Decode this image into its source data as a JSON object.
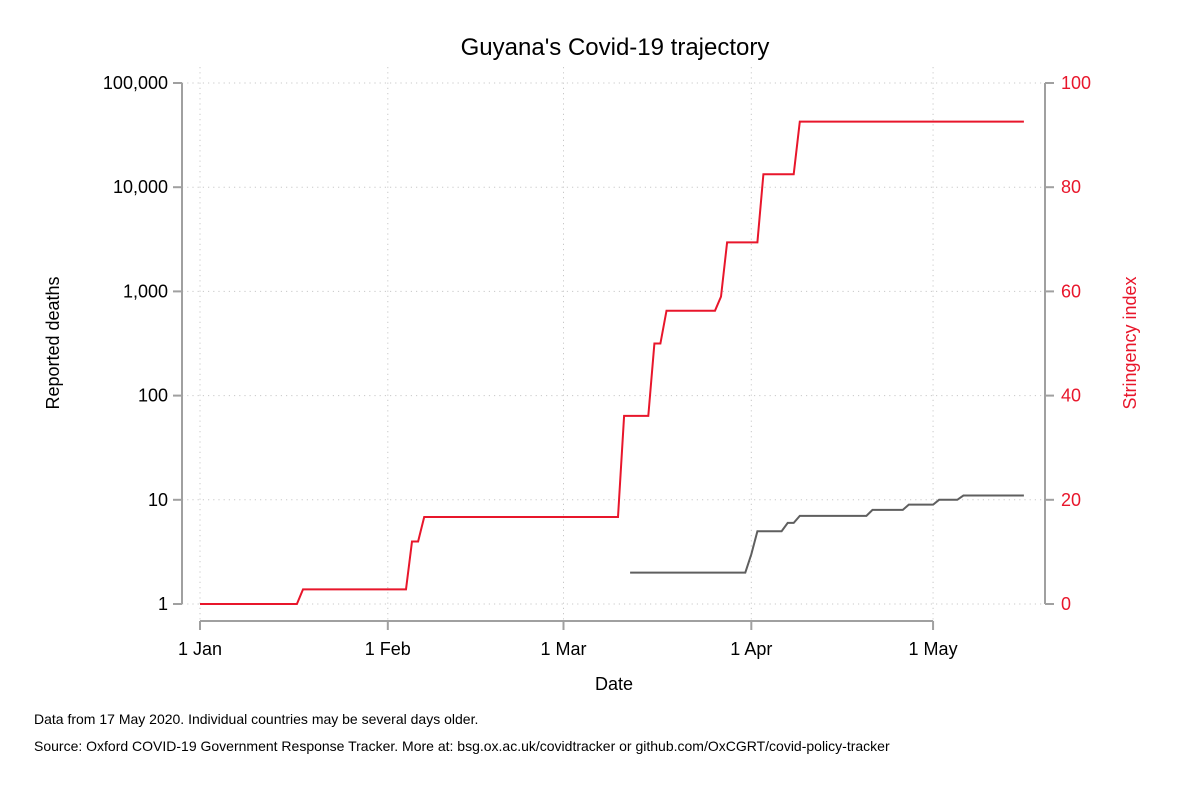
{
  "chart_data": {
    "type": "line",
    "title": "Guyana's Covid-19 trajectory",
    "xlabel": "Date",
    "ylabel_left": "Reported deaths",
    "ylabel_right": "Stringency index",
    "x_tick_labels": [
      "1 Jan",
      "1 Feb",
      "1 Mar",
      "1 Apr",
      "1 May"
    ],
    "x_tick_dates": [
      "2020-01-01",
      "2020-02-01",
      "2020-03-01",
      "2020-04-01",
      "2020-05-01"
    ],
    "xlim": [
      "2020-01-01",
      "2020-05-17"
    ],
    "left_axis": {
      "scale": "log",
      "ylim": [
        1,
        100000
      ],
      "ticks": [
        1,
        10,
        100,
        1000,
        10000,
        100000
      ],
      "tick_labels": [
        "1",
        "10",
        "100",
        "1,000",
        "10,000",
        "100,000"
      ]
    },
    "right_axis": {
      "scale": "linear",
      "ylim": [
        0,
        100
      ],
      "ticks": [
        0,
        20,
        40,
        60,
        80,
        100
      ],
      "tick_labels": [
        "0",
        "20",
        "40",
        "60",
        "80",
        "100"
      ],
      "color": "#e8162b"
    },
    "grid": true,
    "series": [
      {
        "axis": "right",
        "color": "#e8162b",
        "step": true,
        "points": [
          [
            "2020-01-01",
            0
          ],
          [
            "2020-01-17",
            0
          ],
          [
            "2020-01-18",
            2.8
          ],
          [
            "2020-02-04",
            2.8
          ],
          [
            "2020-02-05",
            12.0
          ],
          [
            "2020-02-06",
            12.0
          ],
          [
            "2020-02-07",
            16.7
          ],
          [
            "2020-03-10",
            16.7
          ],
          [
            "2020-03-11",
            36.1
          ],
          [
            "2020-03-15",
            36.1
          ],
          [
            "2020-03-16",
            50.0
          ],
          [
            "2020-03-17",
            50.0
          ],
          [
            "2020-03-18",
            56.3
          ],
          [
            "2020-03-26",
            56.3
          ],
          [
            "2020-03-27",
            59.0
          ],
          [
            "2020-03-28",
            69.4
          ],
          [
            "2020-04-02",
            69.4
          ],
          [
            "2020-04-03",
            82.5
          ],
          [
            "2020-04-08",
            82.5
          ],
          [
            "2020-04-09",
            92.6
          ],
          [
            "2020-05-16",
            92.6
          ]
        ]
      },
      {
        "axis": "left",
        "color": "#5f5f5f",
        "step": true,
        "points": [
          [
            "2020-03-12",
            2
          ],
          [
            "2020-03-31",
            2
          ],
          [
            "2020-04-01",
            3
          ],
          [
            "2020-04-02",
            5
          ],
          [
            "2020-04-06",
            5
          ],
          [
            "2020-04-07",
            6
          ],
          [
            "2020-04-08",
            6
          ],
          [
            "2020-04-09",
            7
          ],
          [
            "2020-04-20",
            7
          ],
          [
            "2020-04-21",
            8
          ],
          [
            "2020-04-26",
            8
          ],
          [
            "2020-04-27",
            9
          ],
          [
            "2020-05-01",
            9
          ],
          [
            "2020-05-02",
            10
          ],
          [
            "2020-05-05",
            10
          ],
          [
            "2020-05-06",
            11
          ],
          [
            "2020-05-16",
            11
          ]
        ]
      }
    ]
  },
  "notes": {
    "line1": "Data from 17 May 2020. Individual countries may be several days older.",
    "line2": "Source: Oxford COVID-19 Government Response Tracker. More at: bsg.ox.ac.uk/covidtracker or github.com/OxCGRT/covid-policy-tracker"
  }
}
